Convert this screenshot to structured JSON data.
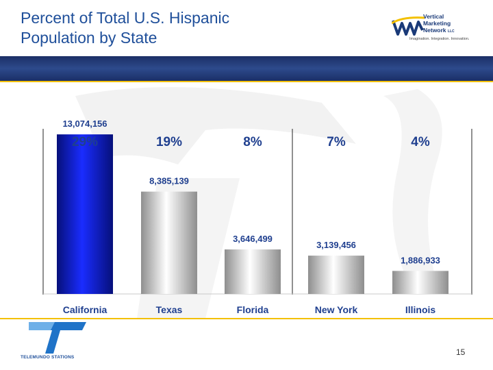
{
  "title": {
    "line1": "Percent of Total U.S. Hispanic",
    "line2": "Population by State"
  },
  "logo_vmn": {
    "icon": "vmn-wave-logo-icon",
    "line1": "Vertical",
    "line2": "Marketing",
    "line3": "Network",
    "suffix": "LLC",
    "tagline": "Imagination. Integration. Innovation."
  },
  "logo_telemundo": {
    "icon": "telemundo-t-logo-icon",
    "name": "TELEMUNDO STATIONS"
  },
  "page_number": "15",
  "colors": {
    "title": "#1f4f9a",
    "band": "#2d4a8c",
    "accent_line": "#f3c000",
    "highlight_bar": "#0a12c8",
    "other_bars": "#c8c8c8",
    "labels": "#1f3f8f"
  },
  "chart_data": {
    "type": "bar",
    "title": "Percent of Total U.S. Hispanic Population by State",
    "categories": [
      "California",
      "Texas",
      "Florida",
      "New York",
      "Illinois"
    ],
    "values": [
      13074156,
      8385139,
      3646499,
      3139456,
      1886933
    ],
    "value_labels": [
      "13,074,156",
      "8,385,139",
      "3,646,499",
      "3,139,456",
      "1,886,933"
    ],
    "percent_labels": [
      "29%",
      "19%",
      "8%",
      "7%",
      "4%"
    ],
    "highlight_index": 0,
    "ylim": [
      0,
      16000000
    ],
    "grid": false,
    "legend": "none"
  }
}
